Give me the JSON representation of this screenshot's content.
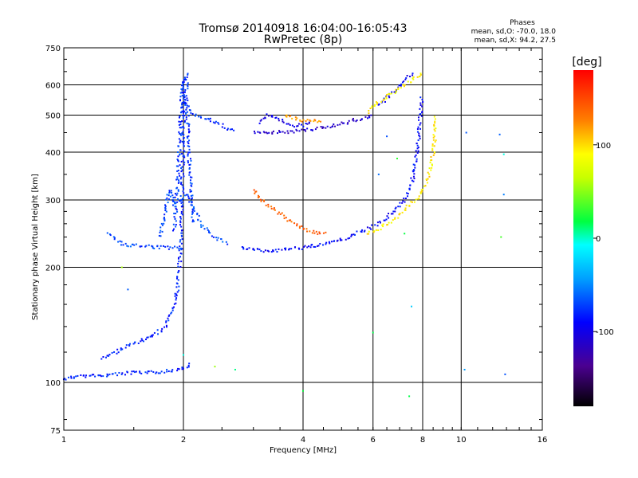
{
  "chart_data": {
    "type": "scatter",
    "title": "Tromsø 20140918 16:04:00-16:05:43",
    "subtitle": "RwPretec (8p)",
    "xlabel": "Frequency [MHz]",
    "ylabel": "Stationary phase Virtual Height [km]",
    "x_scale": "log",
    "y_scale": "log",
    "xlim": [
      1,
      16
    ],
    "ylim": [
      75,
      750
    ],
    "x_ticks": [
      1,
      2,
      4,
      6,
      8,
      10,
      16
    ],
    "x_tick_labels": [
      "1",
      "2",
      "4",
      "6",
      "8",
      "10",
      "16"
    ],
    "y_ticks": [
      75,
      100,
      200,
      300,
      400,
      500,
      600,
      750
    ],
    "y_tick_labels": [
      "75",
      "100",
      "200",
      "300",
      "400",
      "500",
      "600",
      "750"
    ],
    "grid": true,
    "stats": {
      "heading": "Phases",
      "line1": "mean, sd,O: -70.0, 18.0",
      "line2": "mean, sd,X:  94.2, 27.5"
    },
    "colorbar": {
      "label": "[deg]",
      "min": -180,
      "max": 180,
      "ticks": [
        100,
        0,
        -100
      ],
      "tick_labels": [
        "100",
        "0",
        "-100"
      ]
    },
    "traces": [
      {
        "name": "e-layer-trace",
        "phase": -80,
        "points": [
          [
            1.0,
            102
          ],
          [
            1.05,
            103
          ],
          [
            1.1,
            104
          ],
          [
            1.2,
            104
          ],
          [
            1.35,
            105
          ],
          [
            1.5,
            106
          ],
          [
            1.65,
            106
          ],
          [
            1.8,
            107
          ],
          [
            1.95,
            108
          ],
          [
            2.05,
            110
          ],
          [
            2.1,
            112
          ]
        ]
      },
      {
        "name": "f1-lower-trace",
        "phase": -80,
        "points": [
          [
            1.25,
            115
          ],
          [
            1.35,
            120
          ],
          [
            1.45,
            125
          ],
          [
            1.55,
            128
          ],
          [
            1.65,
            131
          ],
          [
            1.72,
            135
          ],
          [
            1.8,
            140
          ],
          [
            1.85,
            148
          ],
          [
            1.9,
            160
          ],
          [
            1.93,
            175
          ],
          [
            1.95,
            195
          ],
          [
            1.97,
            230
          ],
          [
            1.98,
            280
          ],
          [
            1.99,
            350
          ],
          [
            2.0,
            420
          ],
          [
            2.0,
            500
          ],
          [
            2.0,
            560
          ],
          [
            2.0,
            630
          ]
        ]
      },
      {
        "name": "f1-column-trace",
        "phase": -75,
        "points": [
          [
            1.9,
            250
          ],
          [
            1.92,
            300
          ],
          [
            1.94,
            350
          ],
          [
            1.95,
            400
          ],
          [
            1.96,
            450
          ],
          [
            1.97,
            500
          ],
          [
            1.98,
            550
          ],
          [
            1.99,
            600
          ],
          [
            2.02,
            620
          ],
          [
            2.04,
            640
          ],
          [
            2.03,
            560
          ],
          [
            2.05,
            480
          ],
          [
            2.06,
            420
          ],
          [
            2.08,
            360
          ],
          [
            2.1,
            300
          ],
          [
            2.12,
            260
          ]
        ]
      },
      {
        "name": "f-spread-trace",
        "phase": -70,
        "points": [
          [
            1.75,
            240
          ],
          [
            1.8,
            280
          ],
          [
            1.85,
            320
          ],
          [
            1.9,
            290
          ],
          [
            2.05,
            310
          ],
          [
            2.1,
            290
          ],
          [
            2.15,
            280
          ],
          [
            2.2,
            260
          ],
          [
            2.3,
            250
          ],
          [
            2.4,
            240
          ],
          [
            2.5,
            235
          ],
          [
            2.6,
            230
          ]
        ]
      },
      {
        "name": "o-mode-low-trace",
        "phase": -72,
        "points": [
          [
            1.3,
            245
          ],
          [
            1.35,
            235
          ],
          [
            1.4,
            230
          ],
          [
            1.5,
            228
          ],
          [
            1.6,
            227
          ],
          [
            1.7,
            226
          ],
          [
            1.8,
            225
          ],
          [
            1.9,
            225
          ],
          [
            2.0,
            225
          ]
        ]
      },
      {
        "name": "o-mode-f2-trace",
        "phase": -90,
        "points": [
          [
            2.8,
            224
          ],
          [
            3.0,
            222
          ],
          [
            3.3,
            221
          ],
          [
            3.6,
            222
          ],
          [
            4.0,
            225
          ],
          [
            4.4,
            229
          ],
          [
            4.8,
            234
          ],
          [
            5.2,
            240
          ],
          [
            5.6,
            248
          ],
          [
            6.0,
            256
          ],
          [
            6.4,
            266
          ],
          [
            6.8,
            282
          ],
          [
            7.2,
            300
          ],
          [
            7.5,
            330
          ],
          [
            7.7,
            380
          ],
          [
            7.8,
            430
          ],
          [
            7.9,
            500
          ],
          [
            7.95,
            560
          ]
        ]
      },
      {
        "name": "x-mode-f2-trace",
        "phase": 95,
        "points": [
          [
            5.8,
            245
          ],
          [
            6.2,
            252
          ],
          [
            6.6,
            262
          ],
          [
            7.0,
            275
          ],
          [
            7.4,
            290
          ],
          [
            7.8,
            305
          ],
          [
            8.1,
            325
          ],
          [
            8.3,
            350
          ],
          [
            8.45,
            380
          ],
          [
            8.55,
            420
          ],
          [
            8.6,
            460
          ],
          [
            8.65,
            500
          ]
        ]
      },
      {
        "name": "x-mode-oblique-trace",
        "phase": 140,
        "points": [
          [
            3.0,
            320
          ],
          [
            3.1,
            305
          ],
          [
            3.2,
            295
          ],
          [
            3.4,
            282
          ],
          [
            3.6,
            270
          ],
          [
            3.8,
            260
          ],
          [
            4.0,
            253
          ],
          [
            4.2,
            248
          ],
          [
            4.4,
            246
          ],
          [
            4.6,
            245
          ]
        ]
      },
      {
        "name": "o-mode-upper-trace",
        "phase": -80,
        "points": [
          [
            2.0,
            550
          ],
          [
            2.1,
            510
          ],
          [
            2.2,
            495
          ],
          [
            2.3,
            490
          ],
          [
            2.4,
            480
          ],
          [
            2.5,
            470
          ],
          [
            2.6,
            460
          ],
          [
            2.7,
            455
          ]
        ]
      },
      {
        "name": "o-mode-upper-f2-trace",
        "phase": -110,
        "points": [
          [
            3.0,
            450
          ],
          [
            3.3,
            450
          ],
          [
            3.6,
            452
          ],
          [
            4.0,
            455
          ],
          [
            4.4,
            462
          ],
          [
            4.8,
            470
          ],
          [
            5.2,
            480
          ],
          [
            5.6,
            490
          ],
          [
            6.0,
            500
          ]
        ]
      },
      {
        "name": "o-mode-upper-spread",
        "phase": -100,
        "points": [
          [
            3.1,
            480
          ],
          [
            3.2,
            495
          ],
          [
            3.3,
            500
          ],
          [
            3.4,
            490
          ],
          [
            3.5,
            485
          ],
          [
            3.6,
            480
          ],
          [
            3.8,
            470
          ],
          [
            4.0,
            470
          ],
          [
            4.2,
            480
          ]
        ]
      },
      {
        "name": "x-mode-upper-trace",
        "phase": 120,
        "points": [
          [
            3.6,
            500
          ],
          [
            3.8,
            490
          ],
          [
            4.0,
            485
          ],
          [
            4.2,
            482
          ],
          [
            4.5,
            485
          ]
        ]
      },
      {
        "name": "o-mode-top-trace",
        "phase": -95,
        "points": [
          [
            6.2,
            530
          ],
          [
            6.5,
            555
          ],
          [
            6.8,
            580
          ],
          [
            7.1,
            605
          ],
          [
            7.3,
            625
          ],
          [
            7.6,
            640
          ]
        ]
      },
      {
        "name": "x-mode-top-trace",
        "phase": 90,
        "points": [
          [
            5.8,
            510
          ],
          [
            6.2,
            540
          ],
          [
            6.6,
            565
          ],
          [
            7.0,
            590
          ],
          [
            7.4,
            610
          ],
          [
            7.8,
            630
          ],
          [
            8.0,
            650
          ]
        ]
      },
      {
        "name": "scatter-noise",
        "phase": 0,
        "points": [
          [
            1.4,
            200
          ],
          [
            1.45,
            175
          ],
          [
            2.0,
            118
          ],
          [
            2.4,
            110
          ],
          [
            2.7,
            108
          ],
          [
            4.0,
            95
          ],
          [
            6.0,
            135
          ],
          [
            6.2,
            350
          ],
          [
            6.5,
            440
          ],
          [
            6.9,
            385
          ],
          [
            7.2,
            245
          ],
          [
            7.4,
            92
          ],
          [
            7.5,
            158
          ],
          [
            7.6,
            360
          ],
          [
            10.2,
            108
          ],
          [
            10.3,
            450
          ],
          [
            12.5,
            445
          ],
          [
            12.6,
            240
          ],
          [
            12.8,
            395
          ],
          [
            12.8,
            310
          ],
          [
            12.9,
            105
          ]
        ]
      }
    ]
  }
}
